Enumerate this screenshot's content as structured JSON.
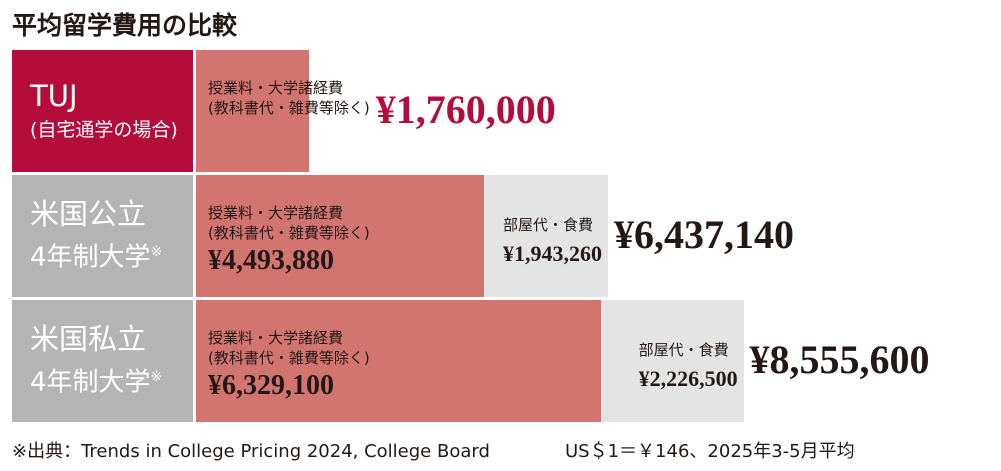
{
  "chart_data": {
    "type": "stacked-bar-horizontal",
    "title": "平均留学費用の比較",
    "categories": [
      "TUJ",
      "米国公立",
      "米国私立"
    ],
    "category_sublabels": [
      "(自宅通学の場合)",
      "4年制大学",
      "4年制大学"
    ],
    "category_marks": [
      null,
      "※",
      "※"
    ],
    "category_colors": [
      "#b50d3b",
      "#b4b4b4",
      "#b4b4b4"
    ],
    "series": [
      {
        "name": "授業料・大学諸経費\n(教科書代・雑費等除く)",
        "color": "#d27571",
        "values": [
          1760000,
          4493880,
          6329100
        ],
        "value_labels": [
          null,
          "¥4,493,880",
          "¥6,329,100"
        ]
      },
      {
        "name": "部屋代・食費",
        "color": "#e4e4e4",
        "values": [
          null,
          1943260,
          2226500
        ],
        "value_labels": [
          null,
          "¥1,943,260",
          "¥2,226,500"
        ]
      }
    ],
    "totals": [
      1760000,
      6437140,
      8555600
    ],
    "total_labels": [
      "¥1,760,000",
      "¥6,437,140",
      "¥8,555,600"
    ],
    "total_colors": [
      "#b50d3b",
      "#231815",
      "#231815"
    ],
    "xlim": [
      0,
      12500000
    ],
    "footnote": "※出典：Trends in College Pricing 2024, College Board",
    "footnote_rate": "US＄1＝￥146、2025年3-5月平均"
  }
}
